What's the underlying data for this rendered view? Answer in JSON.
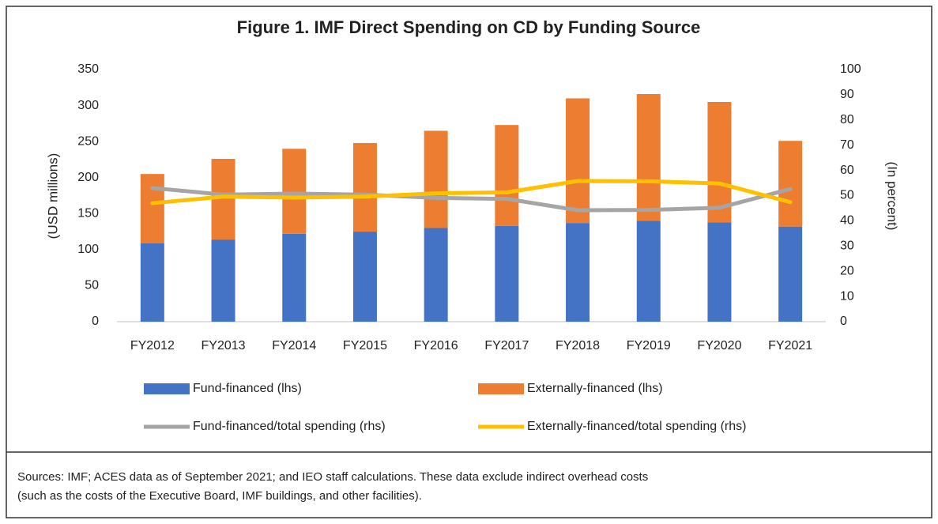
{
  "chart_data": {
    "type": "bar",
    "stacked": true,
    "title": "Figure 1. IMF Direct Spending on CD by Funding Source",
    "y_label": "(USD millions)",
    "y2_label": "(In percent)",
    "categories": [
      "FY2012",
      "FY2013",
      "FY2014",
      "FY2015",
      "FY2016",
      "FY2017",
      "FY2018",
      "FY2019",
      "FY2020",
      "FY2021"
    ],
    "series": [
      {
        "name": "Fund-financed (lhs)",
        "type": "bar",
        "color": "#4472c4",
        "values": [
          109,
          114,
          122,
          125,
          130,
          133,
          137,
          140,
          138,
          132
        ]
      },
      {
        "name": "Externally-financed (lhs)",
        "type": "bar",
        "color": "#ed7d31",
        "values": [
          96,
          112,
          118,
          123,
          135,
          140,
          173,
          176,
          167,
          119
        ]
      },
      {
        "name": "Fund-financed/total spending (rhs)",
        "type": "line",
        "axis": "y2",
        "color": "#a5a5a5",
        "values": [
          53,
          50.4,
          50.8,
          50.4,
          49.1,
          48.7,
          44.2,
          44.3,
          45.2,
          52.6
        ]
      },
      {
        "name": "Externally-financed/total spending (rhs)",
        "type": "line",
        "axis": "y2",
        "color": "#ffc000",
        "values": [
          47,
          49.6,
          49.2,
          49.6,
          50.9,
          51.3,
          55.8,
          55.7,
          54.8,
          47.4
        ]
      }
    ],
    "ylim": [
      0,
      350
    ],
    "yticks": [
      0,
      50,
      100,
      150,
      200,
      250,
      300,
      350
    ],
    "y2lim": [
      0,
      100
    ],
    "y2ticks": [
      0,
      10,
      20,
      30,
      40,
      50,
      60,
      70,
      80,
      90,
      100
    ],
    "grid": false,
    "note": [
      "Sources: IMF; ACES data as of September 2021;  and IEO staff calculations. These data exclude indirect overhead costs",
      "(such as the costs of the Executive Board, IMF buildings, and other facilities)."
    ]
  }
}
